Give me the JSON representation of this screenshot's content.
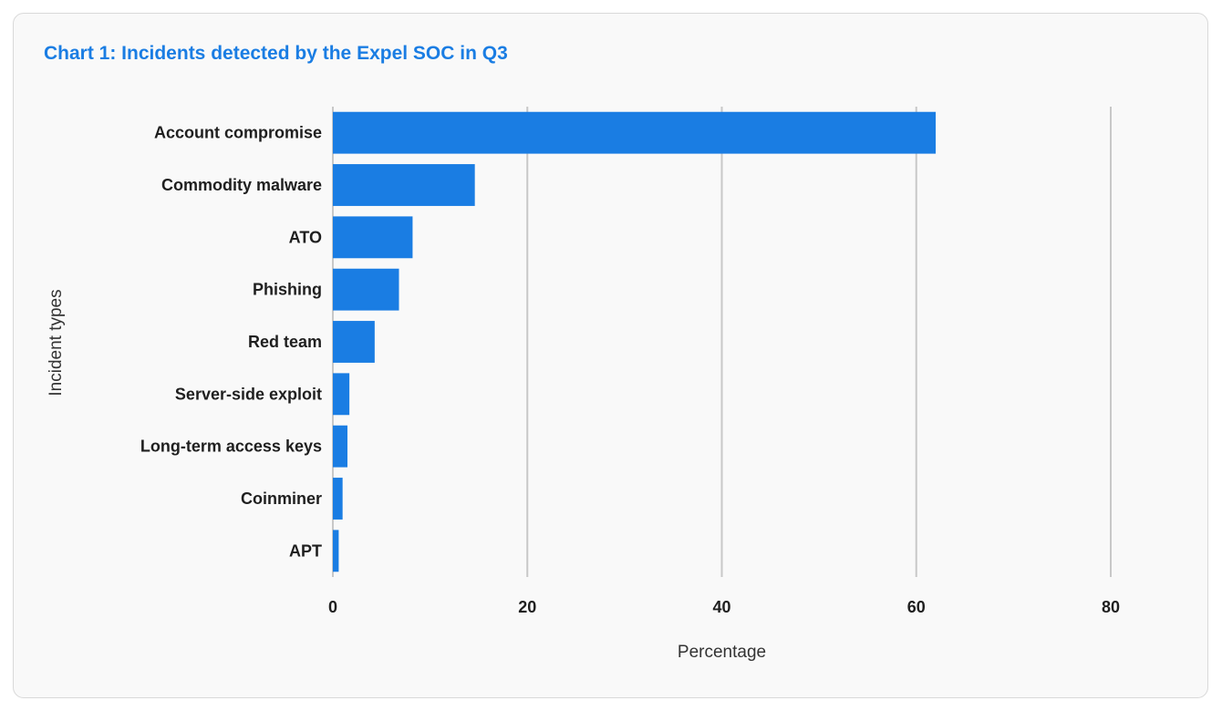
{
  "chart_data": {
    "type": "bar",
    "orientation": "horizontal",
    "title": "Chart 1: Incidents detected by the Expel SOC in Q3",
    "xlabel": "Percentage",
    "ylabel": "Incident types",
    "categories": [
      "Account compromise",
      "Commodity malware",
      "ATO",
      "Phishing",
      "Red team",
      "Server-side exploit",
      "Long-term access keys",
      "Coinminer",
      "APT"
    ],
    "values": [
      62,
      14.6,
      8.2,
      6.8,
      4.3,
      1.7,
      1.5,
      1.0,
      0.6
    ],
    "xlim": [
      0,
      80
    ],
    "xticks": [
      0,
      20,
      40,
      60,
      80
    ],
    "grid": "vertical",
    "legend": "none",
    "colors": {
      "bar": "#1a7de3",
      "title": "#1a7de3",
      "grid": "#c8c8c8",
      "card_background": "#f9f9f9",
      "card_border": "#d9d9d9"
    }
  }
}
